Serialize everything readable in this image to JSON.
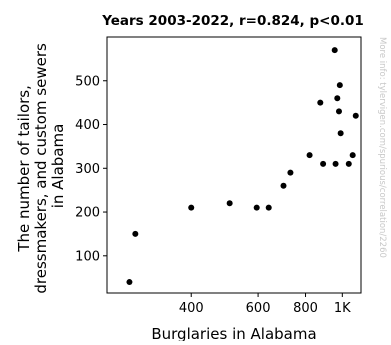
{
  "chart_data": {
    "type": "scatter",
    "title": "Years 2003-2022, r=0.824, p<0.01",
    "xlabel": "Burglaries in Alabama",
    "ylabel_lines": [
      "The number of tailors,",
      "dressmakers, and custom sewers",
      "in Alabama"
    ],
    "side_note": "More info: tylervigen.com/spurious/correlation/2260",
    "x_scale": "log",
    "xlim": [
      240,
      1120
    ],
    "ylim": [
      15,
      600
    ],
    "x_ticks": [
      {
        "value": 400,
        "label": "400"
      },
      {
        "value": 600,
        "label": "600"
      },
      {
        "value": 800,
        "label": "800"
      },
      {
        "value": 1000,
        "label": "1K"
      }
    ],
    "y_ticks": [
      {
        "value": 100,
        "label": "100"
      },
      {
        "value": 200,
        "label": "200"
      },
      {
        "value": 300,
        "label": "300"
      },
      {
        "value": 400,
        "label": "400"
      },
      {
        "value": 500,
        "label": "500"
      }
    ],
    "grid": false,
    "colors": {
      "points": "#000000",
      "axes": "#000000",
      "side_note": "#c8c8c8"
    },
    "points": [
      {
        "x": 275,
        "y": 40
      },
      {
        "x": 285,
        "y": 150
      },
      {
        "x": 400,
        "y": 210
      },
      {
        "x": 505,
        "y": 220
      },
      {
        "x": 595,
        "y": 210
      },
      {
        "x": 640,
        "y": 210
      },
      {
        "x": 700,
        "y": 260
      },
      {
        "x": 730,
        "y": 290
      },
      {
        "x": 820,
        "y": 330
      },
      {
        "x": 875,
        "y": 450
      },
      {
        "x": 890,
        "y": 310
      },
      {
        "x": 955,
        "y": 570
      },
      {
        "x": 960,
        "y": 310
      },
      {
        "x": 970,
        "y": 460
      },
      {
        "x": 980,
        "y": 430
      },
      {
        "x": 985,
        "y": 490
      },
      {
        "x": 990,
        "y": 380
      },
      {
        "x": 1040,
        "y": 310
      },
      {
        "x": 1065,
        "y": 330
      },
      {
        "x": 1085,
        "y": 420
      }
    ]
  }
}
